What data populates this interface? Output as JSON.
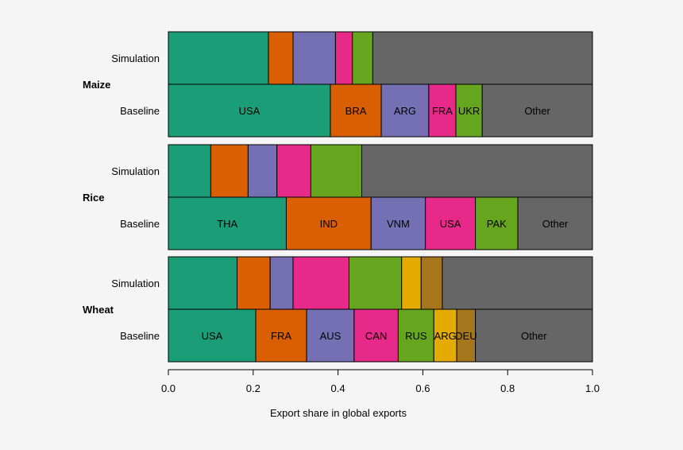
{
  "chart_data": {
    "type": "bar",
    "orientation": "horizontal",
    "stacked": true,
    "xlabel": "Export share in global exports",
    "xlim": [
      0,
      1
    ],
    "xticks": [
      "0.0",
      "0.2",
      "0.4",
      "0.6",
      "0.8",
      "1.0"
    ],
    "colors": {
      "c1": "#1b9e77",
      "c2": "#d95f02",
      "c3": "#7570b3",
      "c4": "#e7298a",
      "c5": "#66a61e",
      "c6": "#e6ab02",
      "c7": "#a6761d",
      "other": "#666666"
    },
    "groups": [
      {
        "crop": "Maize",
        "rows": [
          {
            "label": "Simulation",
            "segments": [
              {
                "name": "",
                "value": 0.236,
                "color": "c1"
              },
              {
                "name": "",
                "value": 0.058,
                "color": "c2"
              },
              {
                "name": "",
                "value": 0.1,
                "color": "c3"
              },
              {
                "name": "",
                "value": 0.04,
                "color": "c4"
              },
              {
                "name": "",
                "value": 0.048,
                "color": "c5"
              },
              {
                "name": "",
                "value": 0.518,
                "color": "other"
              }
            ]
          },
          {
            "label": "Baseline",
            "segments": [
              {
                "name": "USA",
                "value": 0.382,
                "color": "c1"
              },
              {
                "name": "BRA",
                "value": 0.12,
                "color": "c2"
              },
              {
                "name": "ARG",
                "value": 0.112,
                "color": "c3"
              },
              {
                "name": "FRA",
                "value": 0.064,
                "color": "c4"
              },
              {
                "name": "UKR",
                "value": 0.062,
                "color": "c5"
              },
              {
                "name": "Other",
                "value": 0.26,
                "color": "other"
              }
            ]
          }
        ]
      },
      {
        "crop": "Rice",
        "rows": [
          {
            "label": "Simulation",
            "segments": [
              {
                "name": "",
                "value": 0.1,
                "color": "c1"
              },
              {
                "name": "",
                "value": 0.088,
                "color": "c2"
              },
              {
                "name": "",
                "value": 0.068,
                "color": "c3"
              },
              {
                "name": "",
                "value": 0.08,
                "color": "c4"
              },
              {
                "name": "",
                "value": 0.12,
                "color": "c5"
              },
              {
                "name": "",
                "value": 0.544,
                "color": "other"
              }
            ]
          },
          {
            "label": "Baseline",
            "segments": [
              {
                "name": "THA",
                "value": 0.278,
                "color": "c1"
              },
              {
                "name": "IND",
                "value": 0.2,
                "color": "c2"
              },
              {
                "name": "VNM",
                "value": 0.128,
                "color": "c3"
              },
              {
                "name": "USA",
                "value": 0.118,
                "color": "c4"
              },
              {
                "name": "PAK",
                "value": 0.1,
                "color": "c5"
              },
              {
                "name": "Other",
                "value": 0.176,
                "color": "other"
              }
            ]
          }
        ]
      },
      {
        "crop": "Wheat",
        "rows": [
          {
            "label": "Simulation",
            "segments": [
              {
                "name": "",
                "value": 0.162,
                "color": "c1"
              },
              {
                "name": "",
                "value": 0.078,
                "color": "c2"
              },
              {
                "name": "",
                "value": 0.054,
                "color": "c3"
              },
              {
                "name": "",
                "value": 0.132,
                "color": "c4"
              },
              {
                "name": "",
                "value": 0.124,
                "color": "c5"
              },
              {
                "name": "",
                "value": 0.046,
                "color": "c6"
              },
              {
                "name": "",
                "value": 0.05,
                "color": "c7"
              },
              {
                "name": "",
                "value": 0.354,
                "color": "other"
              }
            ]
          },
          {
            "label": "Baseline",
            "segments": [
              {
                "name": "USA",
                "value": 0.206,
                "color": "c1"
              },
              {
                "name": "FRA",
                "value": 0.12,
                "color": "c2"
              },
              {
                "name": "AUS",
                "value": 0.112,
                "color": "c3"
              },
              {
                "name": "CAN",
                "value": 0.104,
                "color": "c4"
              },
              {
                "name": "RUS",
                "value": 0.084,
                "color": "c5"
              },
              {
                "name": "ARG",
                "value": 0.054,
                "color": "c6"
              },
              {
                "name": "DEU",
                "value": 0.044,
                "color": "c7"
              },
              {
                "name": "Other",
                "value": 0.276,
                "color": "other"
              }
            ]
          }
        ]
      }
    ]
  }
}
